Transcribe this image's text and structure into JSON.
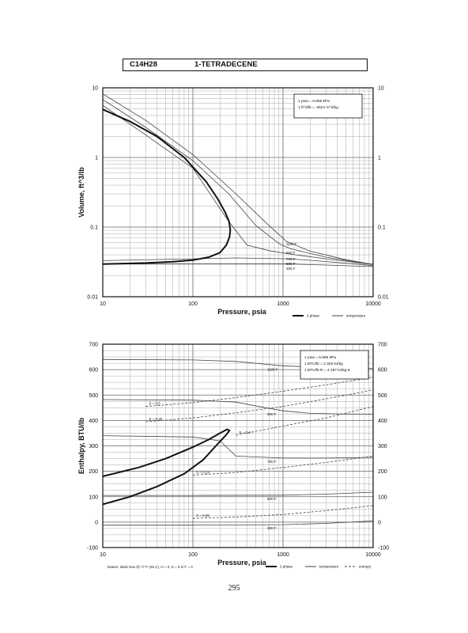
{
  "header": {
    "formula": "C14H28",
    "name": "1-TETRADECENE"
  },
  "page_number": "295",
  "chart_data": [
    {
      "type": "line",
      "title": "",
      "xlabel": "Pressure, psia",
      "ylabel": "Volume, ft^3/lb",
      "xscale": "log",
      "yscale": "log",
      "xlim": [
        10,
        10000
      ],
      "ylim": [
        0.01,
        10
      ],
      "grid": true,
      "x_ticks": [
        "10",
        "100",
        "1000",
        "10000"
      ],
      "y_ticks": [
        "0.01",
        "0.1",
        "1",
        "10"
      ],
      "conversions": [
        "1 psia = 6.895 kPa",
        "1 ft^3/lb = .0624 m^3/kg"
      ],
      "legend": {
        "position": "bottom-right",
        "entries": [
          "2 phase",
          "temperature"
        ]
      },
      "color_two_phase": "#111111",
      "color_isotherm": "#444444",
      "two_phase": [
        {
          "x": 10,
          "y": 0.0295
        },
        {
          "x": 30,
          "y": 0.0305
        },
        {
          "x": 60,
          "y": 0.0318
        },
        {
          "x": 100,
          "y": 0.0335
        },
        {
          "x": 150,
          "y": 0.037
        },
        {
          "x": 200,
          "y": 0.043
        },
        {
          "x": 235,
          "y": 0.055
        },
        {
          "x": 255,
          "y": 0.072
        },
        {
          "x": 260,
          "y": 0.09
        },
        {
          "x": 252,
          "y": 0.12
        },
        {
          "x": 230,
          "y": 0.16
        },
        {
          "x": 190,
          "y": 0.25
        },
        {
          "x": 140,
          "y": 0.45
        },
        {
          "x": 80,
          "y": 1.0
        },
        {
          "x": 40,
          "y": 2.0
        },
        {
          "x": 20,
          "y": 3.3
        },
        {
          "x": 10,
          "y": 4.9
        }
      ],
      "isotherms": [
        {
          "label": "1100 F",
          "points": [
            {
              "x": 10,
              "y": 8.2
            },
            {
              "x": 30,
              "y": 3.4
            },
            {
              "x": 100,
              "y": 1.1
            },
            {
              "x": 300,
              "y": 0.3
            },
            {
              "x": 700,
              "y": 0.105
            },
            {
              "x": 1100,
              "y": 0.062
            },
            {
              "x": 2000,
              "y": 0.045
            },
            {
              "x": 5000,
              "y": 0.034
            },
            {
              "x": 10000,
              "y": 0.029
            }
          ]
        },
        {
          "label": "900 F",
          "points": [
            {
              "x": 10,
              "y": 6.8
            },
            {
              "x": 30,
              "y": 2.7
            },
            {
              "x": 100,
              "y": 0.9
            },
            {
              "x": 250,
              "y": 0.3
            },
            {
              "x": 500,
              "y": 0.105
            },
            {
              "x": 900,
              "y": 0.058
            },
            {
              "x": 1200,
              "y": 0.049
            },
            {
              "x": 3000,
              "y": 0.037
            },
            {
              "x": 10000,
              "y": 0.029
            }
          ]
        },
        {
          "label": "700 F",
          "points": [
            {
              "x": 10,
              "y": 5.6
            },
            {
              "x": 30,
              "y": 2.1
            },
            {
              "x": 100,
              "y": 0.7
            },
            {
              "x": 250,
              "y": 0.12
            },
            {
              "x": 400,
              "y": 0.055
            },
            {
              "x": 700,
              "y": 0.046
            },
            {
              "x": 1200,
              "y": 0.041
            },
            {
              "x": 3000,
              "y": 0.035
            },
            {
              "x": 10000,
              "y": 0.029
            }
          ]
        },
        {
          "label": "500 F",
          "points": [
            {
              "x": 10,
              "y": 0.033
            },
            {
              "x": 300,
              "y": 0.036
            },
            {
              "x": 1200,
              "y": 0.035
            },
            {
              "x": 3000,
              "y": 0.032
            },
            {
              "x": 10000,
              "y": 0.028
            }
          ]
        },
        {
          "label": "300 F",
          "points": [
            {
              "x": 10,
              "y": 0.0295
            },
            {
              "x": 300,
              "y": 0.0295
            },
            {
              "x": 1200,
              "y": 0.0295
            },
            {
              "x": 3000,
              "y": 0.0285
            },
            {
              "x": 10000,
              "y": 0.027
            }
          ]
        }
      ]
    },
    {
      "type": "line",
      "title": "",
      "xlabel": "Pressure, psia",
      "ylabel": "Enthalpy, BTU/lb",
      "xscale": "log",
      "yscale": "linear",
      "xlim": [
        10,
        10000
      ],
      "ylim": [
        -100,
        700
      ],
      "grid": true,
      "x_ticks": [
        "10",
        "100",
        "1000",
        "10000"
      ],
      "y_ticks": [
        "-100",
        "0",
        "100",
        "200",
        "300",
        "400",
        "500",
        "600",
        "700"
      ],
      "conversions": [
        "1 psia = 6.895 kPa",
        "1 BTU/lb = 2.326 kJ/kg",
        "1 BTU/lb R = 4.187 kJ/kg K"
      ],
      "legend": {
        "position": "bottom-right",
        "entries": [
          "2 phase",
          "temperature",
          "entropy"
        ]
      },
      "footnote": "Datum: Ideal Gas @ 77 F (25 C), H = 0, S = 0 in F = 0",
      "color_two_phase": "#111111",
      "color_isotherm": "#444444",
      "color_entropy": "#444444",
      "two_phase": [
        {
          "x": 10,
          "y": 70
        },
        {
          "x": 20,
          "y": 100
        },
        {
          "x": 40,
          "y": 140
        },
        {
          "x": 80,
          "y": 190
        },
        {
          "x": 130,
          "y": 245
        },
        {
          "x": 180,
          "y": 300
        },
        {
          "x": 230,
          "y": 340
        },
        {
          "x": 255,
          "y": 360
        },
        {
          "x": 240,
          "y": 365
        },
        {
          "x": 200,
          "y": 350
        },
        {
          "x": 150,
          "y": 325
        },
        {
          "x": 100,
          "y": 295
        },
        {
          "x": 50,
          "y": 250
        },
        {
          "x": 25,
          "y": 215
        },
        {
          "x": 10,
          "y": 180
        }
      ],
      "isotherms": [
        {
          "label": "1100 F",
          "points": [
            {
              "x": 10,
              "y": 640
            },
            {
              "x": 100,
              "y": 638
            },
            {
              "x": 300,
              "y": 632
            },
            {
              "x": 700,
              "y": 620
            },
            {
              "x": 1000,
              "y": 615
            },
            {
              "x": 3000,
              "y": 608
            },
            {
              "x": 10000,
              "y": 605
            }
          ]
        },
        {
          "label": "900 F",
          "points": [
            {
              "x": 10,
              "y": 482
            },
            {
              "x": 100,
              "y": 480
            },
            {
              "x": 300,
              "y": 472
            },
            {
              "x": 600,
              "y": 452
            },
            {
              "x": 1000,
              "y": 438
            },
            {
              "x": 2000,
              "y": 428
            },
            {
              "x": 5000,
              "y": 425
            },
            {
              "x": 10000,
              "y": 425
            }
          ]
        },
        {
          "label": "700 F",
          "points": [
            {
              "x": 10,
              "y": 340
            },
            {
              "x": 100,
              "y": 335
            },
            {
              "x": 200,
              "y": 320
            },
            {
              "x": 300,
              "y": 260
            },
            {
              "x": 1000,
              "y": 252
            },
            {
              "x": 3000,
              "y": 252
            },
            {
              "x": 10000,
              "y": 255
            }
          ]
        },
        {
          "label": "500 F",
          "points": [
            {
              "x": 10,
              "y": 105
            },
            {
              "x": 100,
              "y": 105
            },
            {
              "x": 1000,
              "y": 106
            },
            {
              "x": 3000,
              "y": 110
            },
            {
              "x": 10000,
              "y": 118
            }
          ]
        },
        {
          "label": "300 F",
          "points": [
            {
              "x": 10,
              "y": -12
            },
            {
              "x": 100,
              "y": -12
            },
            {
              "x": 1000,
              "y": -10
            },
            {
              "x": 3000,
              "y": -5
            },
            {
              "x": 10000,
              "y": 5
            }
          ]
        }
      ],
      "entropy_lines": [
        {
          "label": "S = 0.5",
          "points": [
            {
              "x": 30,
              "y": 455
            },
            {
              "x": 100,
              "y": 470
            },
            {
              "x": 300,
              "y": 490
            },
            {
              "x": 1000,
              "y": 515
            },
            {
              "x": 3000,
              "y": 540
            },
            {
              "x": 10000,
              "y": 570
            }
          ]
        },
        {
          "label": "S = 0.45",
          "points": [
            {
              "x": 30,
              "y": 395
            },
            {
              "x": 100,
              "y": 410
            },
            {
              "x": 300,
              "y": 430
            },
            {
              "x": 1000,
              "y": 455
            },
            {
              "x": 3000,
              "y": 485
            },
            {
              "x": 10000,
              "y": 520
            }
          ]
        },
        {
          "label": "S = 0.4",
          "points": [
            {
              "x": 300,
              "y": 342
            },
            {
              "x": 1000,
              "y": 378
            },
            {
              "x": 3000,
              "y": 410
            },
            {
              "x": 10000,
              "y": 455
            }
          ]
        },
        {
          "label": "S = 0.24",
          "points": [
            {
              "x": 100,
              "y": 185
            },
            {
              "x": 300,
              "y": 195
            },
            {
              "x": 1000,
              "y": 215
            },
            {
              "x": 3000,
              "y": 235
            },
            {
              "x": 10000,
              "y": 260
            }
          ]
        },
        {
          "label": "S = 0.06",
          "points": [
            {
              "x": 100,
              "y": 15
            },
            {
              "x": 300,
              "y": 20
            },
            {
              "x": 1000,
              "y": 30
            },
            {
              "x": 3000,
              "y": 45
            },
            {
              "x": 10000,
              "y": 65
            }
          ]
        }
      ]
    }
  ]
}
